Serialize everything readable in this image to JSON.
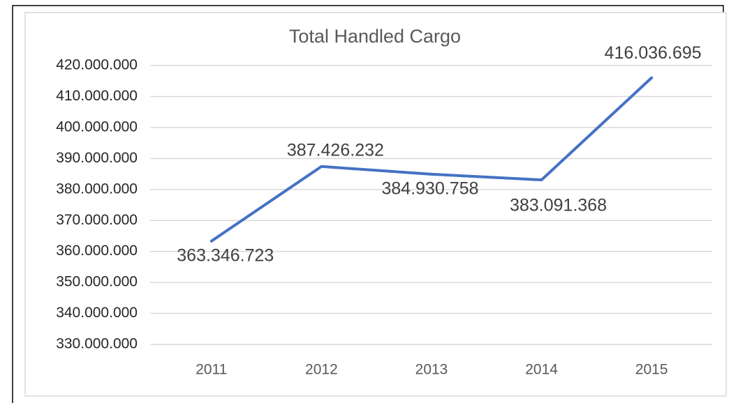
{
  "chart_data": {
    "type": "line",
    "title": "Total Handled Cargo",
    "categories": [
      "2011",
      "2012",
      "2013",
      "2014",
      "2015"
    ],
    "series": [
      {
        "name": "Total Handled Cargo",
        "color": "#4472c4",
        "values": [
          363346723,
          387426232,
          384930758,
          383091368,
          416036695
        ],
        "value_labels": [
          "363.346.723",
          "387.426.232",
          "384.930.758",
          "383.091.368",
          "416.036.695"
        ]
      }
    ],
    "ylim": [
      330000000,
      420000000
    ],
    "yticks": [
      {
        "value": 330000000,
        "label": "330.000.000"
      },
      {
        "value": 340000000,
        "label": "340.000.000"
      },
      {
        "value": 350000000,
        "label": "350.000.000"
      },
      {
        "value": 360000000,
        "label": "360.000.000"
      },
      {
        "value": 370000000,
        "label": "370.000.000"
      },
      {
        "value": 380000000,
        "label": "380.000.000"
      },
      {
        "value": 390000000,
        "label": "390.000.000"
      },
      {
        "value": 400000000,
        "label": "400.000.000"
      },
      {
        "value": 410000000,
        "label": "410.000.000"
      },
      {
        "value": 420000000,
        "label": "420.000.000"
      }
    ],
    "grid": true
  }
}
